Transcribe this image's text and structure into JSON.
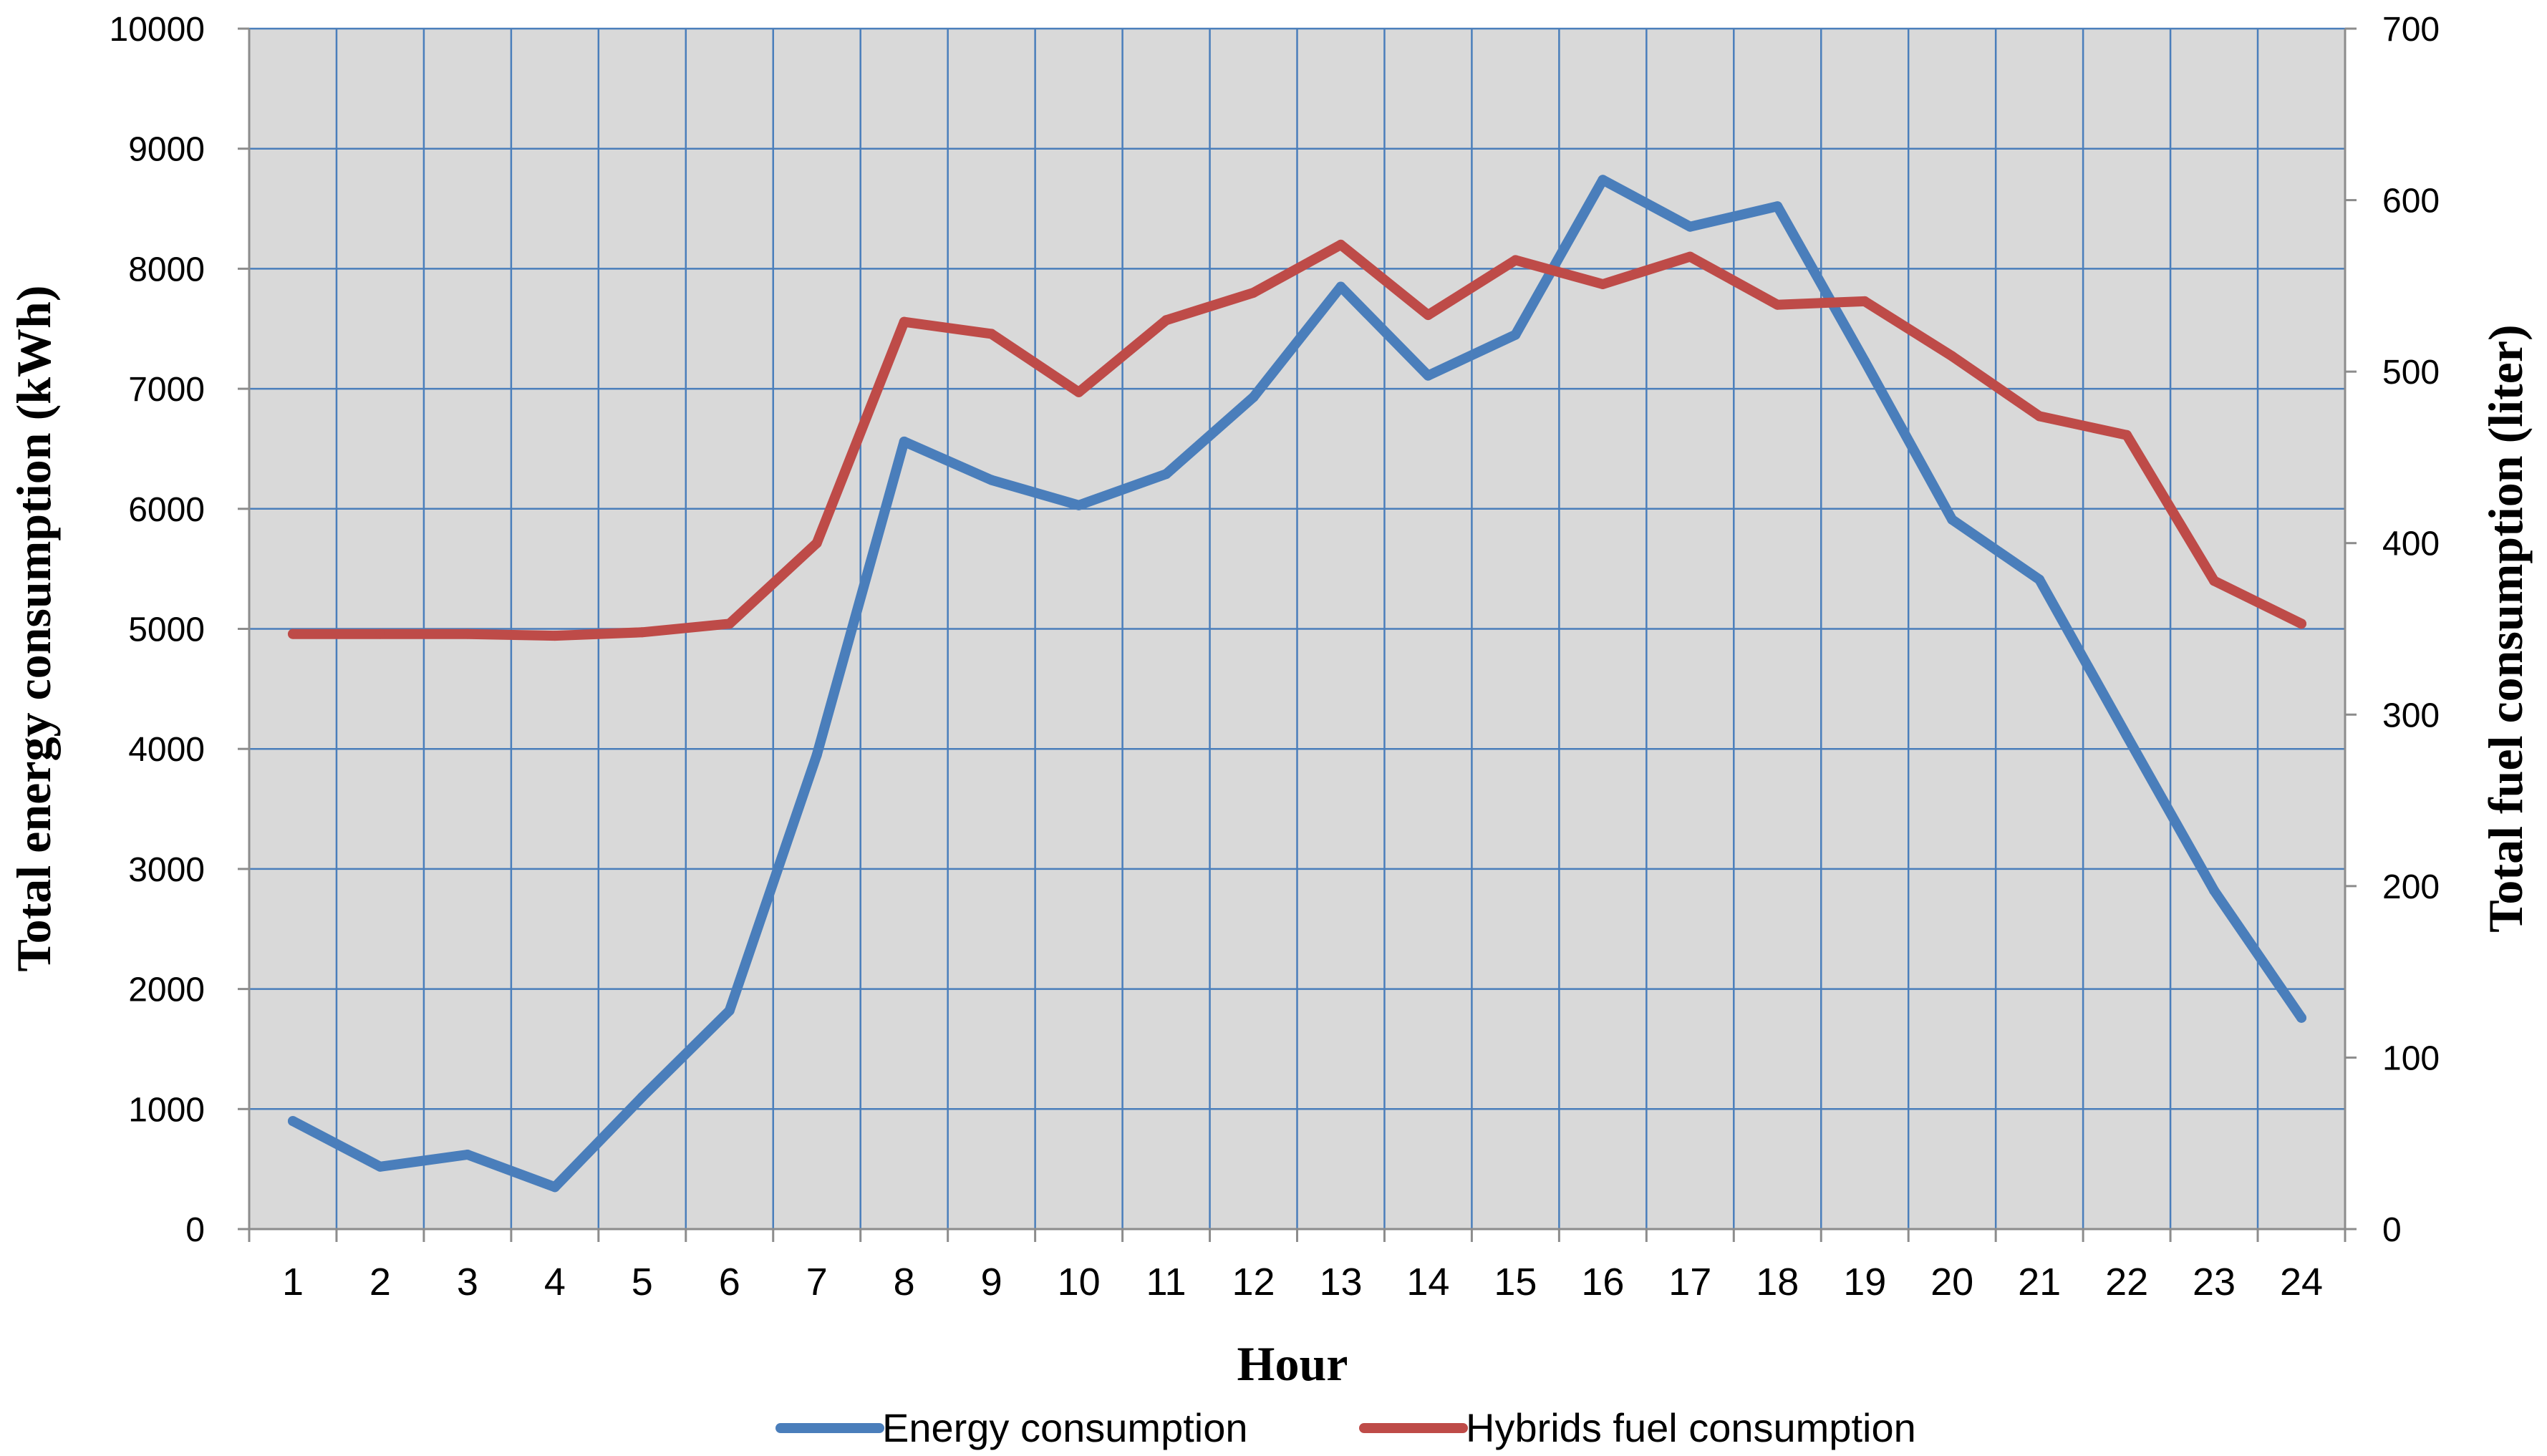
{
  "chart_data": {
    "type": "line",
    "title": "",
    "xlabel": "Hour",
    "ylabel": "Total energy consumption (kWh)",
    "y2label": "Total fuel consumption (liter)",
    "categories": [
      "1",
      "2",
      "3",
      "4",
      "5",
      "6",
      "7",
      "8",
      "9",
      "10",
      "11",
      "12",
      "13",
      "14",
      "15",
      "16",
      "17",
      "18",
      "19",
      "20",
      "21",
      "22",
      "23",
      "24"
    ],
    "ylim": [
      0,
      10000
    ],
    "yticks": [
      0,
      1000,
      2000,
      3000,
      4000,
      5000,
      6000,
      7000,
      8000,
      9000,
      10000
    ],
    "y2lim": [
      0,
      700
    ],
    "y2ticks": [
      0,
      100,
      200,
      300,
      400,
      500,
      600,
      700
    ],
    "grid": true,
    "legend_position": "bottom",
    "series": [
      {
        "name": "Energy consumption",
        "axis": "left",
        "color": "#4a7ebb",
        "values": [
          900,
          520,
          620,
          350,
          1100,
          1820,
          3950,
          6560,
          6240,
          6030,
          6290,
          6930,
          7850,
          7110,
          7450,
          8740,
          8350,
          8520,
          7230,
          5910,
          5410,
          4110,
          2820,
          1760
        ]
      },
      {
        "name": "Hybrids fuel consumption",
        "axis": "right",
        "color": "#be4b48",
        "values": [
          347,
          347,
          347,
          346,
          348,
          353,
          400,
          529,
          522,
          488,
          530,
          546,
          574,
          533,
          565,
          551,
          567,
          539,
          541,
          509,
          474,
          463,
          378,
          353
        ]
      }
    ]
  }
}
